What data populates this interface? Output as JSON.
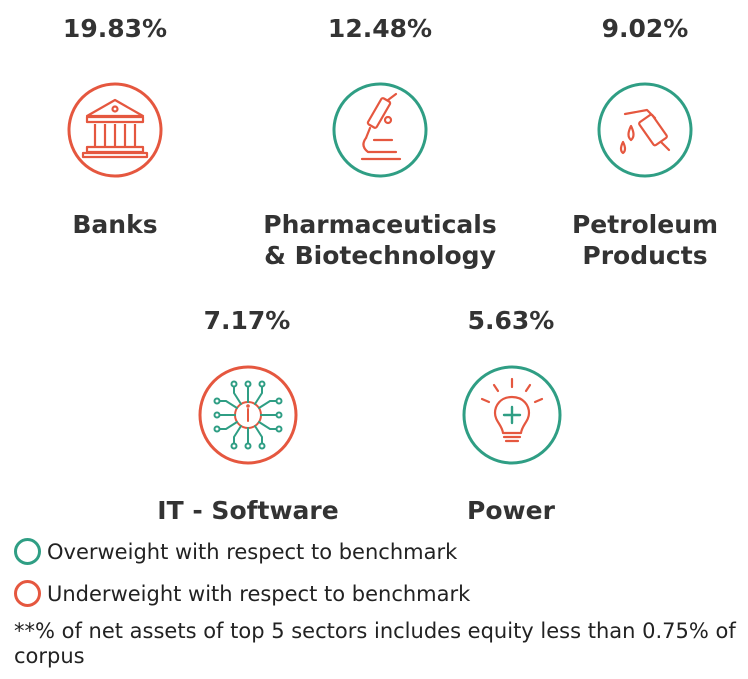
{
  "colors": {
    "overweight": "#2f9e84",
    "underweight": "#e5573f",
    "text": "#333333"
  },
  "sectors": [
    {
      "percent": "19.83%",
      "name": "Banks",
      "weight": "underweight",
      "icon": "bank-building-icon"
    },
    {
      "percent": "12.48%",
      "name_lines": [
        "Pharmaceuticals",
        "& Biotechnology"
      ],
      "weight": "overweight",
      "icon": "microscope-icon"
    },
    {
      "percent": "9.02%",
      "name_lines": [
        "Petroleum",
        "Products"
      ],
      "weight": "overweight",
      "icon": "fuel-nozzle-icon"
    },
    {
      "percent": "7.17%",
      "name": "IT - Software",
      "weight": "underweight",
      "icon": "circuit-chip-icon"
    },
    {
      "percent": "5.63%",
      "name": "Power",
      "weight": "overweight",
      "icon": "light-bulb-icon"
    }
  ],
  "legend": [
    {
      "label": "Overweight with respect to benchmark",
      "weight": "overweight"
    },
    {
      "label": "Underweight with respect to benchmark",
      "weight": "underweight"
    }
  ],
  "footnote": "**% of net assets of top 5 sectors includes equity less than 0.75% of corpus"
}
